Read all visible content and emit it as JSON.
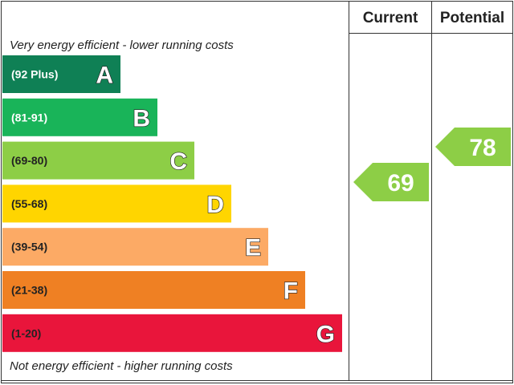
{
  "header": {
    "current_label": "Current",
    "potential_label": "Potential"
  },
  "notes": {
    "top": "Very energy efficient - lower running costs",
    "bottom": "Not energy efficient - higher running costs"
  },
  "chart_data": {
    "type": "bar",
    "categories": [
      "A",
      "B",
      "C",
      "D",
      "E",
      "F",
      "G"
    ],
    "bands": [
      {
        "letter": "A",
        "range": "(92 Plus)",
        "color": "#0f8055",
        "text_color": "#ffffff"
      },
      {
        "letter": "B",
        "range": "(81-91)",
        "color": "#19b459",
        "text_color": "#ffffff"
      },
      {
        "letter": "C",
        "range": "(69-80)",
        "color": "#8dce46",
        "text_color": "#222222"
      },
      {
        "letter": "D",
        "range": "(55-68)",
        "color": "#ffd500",
        "text_color": "#222222"
      },
      {
        "letter": "E",
        "range": "(39-54)",
        "color": "#fcaa65",
        "text_color": "#222222"
      },
      {
        "letter": "F",
        "range": "(21-38)",
        "color": "#ef8023",
        "text_color": "#222222"
      },
      {
        "letter": "G",
        "range": "(1-20)",
        "color": "#e9153b",
        "text_color": "#222222"
      }
    ],
    "current": {
      "value": 69,
      "band": "C",
      "color": "#8dce46"
    },
    "potential": {
      "value": 78,
      "band": "C",
      "color": "#8dce46"
    }
  }
}
